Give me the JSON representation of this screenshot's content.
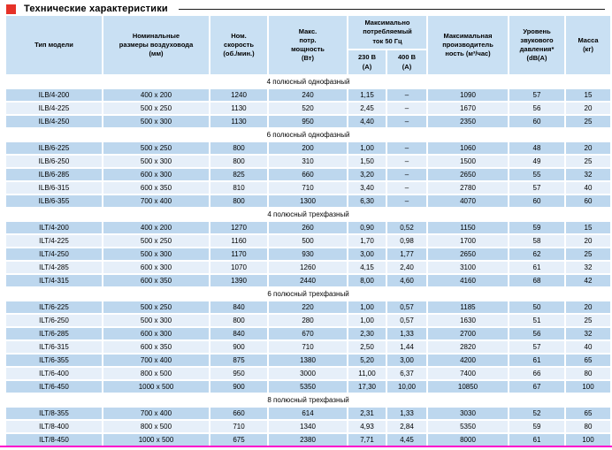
{
  "page": {
    "title": "Технические характеристики",
    "accent_red": "#e63228",
    "bottom_line_color": "#ff00cc",
    "row_color_dark": "#bdd7ee",
    "row_color_light": "#e6eff9",
    "header_color": "#c9e0f3"
  },
  "table": {
    "columns": {
      "model": "Тип модели",
      "size": "Номинальные\nразмеры воздуховода\n(мм)",
      "speed": "Ном.\nскорость\n(об./мин.)",
      "power": "Макс.\nпотр.\nмощность\n(Вт)",
      "current_group": "Максимально\nпотребляемый\nток 50 Гц",
      "current_230": "230 В\n(А)",
      "current_400": "400 В\n(А)",
      "airflow": "Максимальная\nпроизводитель\nность (м³/час)",
      "sound": "Уровень\nзвукового\nдавления*\n(dB(A)",
      "mass": "Масса\n(кг)"
    },
    "sections": [
      {
        "title": "4 полюсный однофазный",
        "rows": [
          [
            "ILB/4-200",
            "400 x 200",
            "1240",
            "240",
            "1,15",
            "–",
            "1090",
            "57",
            "15"
          ],
          [
            "ILB/4-225",
            "500 x 250",
            "1130",
            "520",
            "2,45",
            "–",
            "1670",
            "56",
            "20"
          ],
          [
            "ILB/4-250",
            "500 x 300",
            "1130",
            "950",
            "4,40",
            "–",
            "2350",
            "60",
            "25"
          ]
        ]
      },
      {
        "title": "6 полюсный однофазный",
        "rows": [
          [
            "ILB/6-225",
            "500 x 250",
            "800",
            "200",
            "1,00",
            "–",
            "1060",
            "48",
            "20"
          ],
          [
            "ILB/6-250",
            "500 x 300",
            "800",
            "310",
            "1,50",
            "–",
            "1500",
            "49",
            "25"
          ],
          [
            "ILB/6-285",
            "600 x 300",
            "825",
            "660",
            "3,20",
            "–",
            "2650",
            "55",
            "32"
          ],
          [
            "ILB/6-315",
            "600 x 350",
            "810",
            "710",
            "3,40",
            "–",
            "2780",
            "57",
            "40"
          ],
          [
            "ILB/6-355",
            "700 x 400",
            "800",
            "1300",
            "6,30",
            "–",
            "4070",
            "60",
            "60"
          ]
        ]
      },
      {
        "title": "4 полюсный трехфазный",
        "rows": [
          [
            "ILT/4-200",
            "400 x 200",
            "1270",
            "260",
            "0,90",
            "0,52",
            "1150",
            "59",
            "15"
          ],
          [
            "ILT/4-225",
            "500 x 250",
            "1160",
            "500",
            "1,70",
            "0,98",
            "1700",
            "58",
            "20"
          ],
          [
            "ILT/4-250",
            "500 x 300",
            "1170",
            "930",
            "3,00",
            "1,77",
            "2650",
            "62",
            "25"
          ],
          [
            "ILT/4-285",
            "600 x 300",
            "1070",
            "1260",
            "4,15",
            "2,40",
            "3100",
            "61",
            "32"
          ],
          [
            "ILT/4-315",
            "600 x 350",
            "1390",
            "2440",
            "8,00",
            "4,60",
            "4160",
            "68",
            "42"
          ]
        ]
      },
      {
        "title": "6 полюсный трехфазный",
        "rows": [
          [
            "ILT/6-225",
            "500 x 250",
            "840",
            "220",
            "1,00",
            "0,57",
            "1185",
            "50",
            "20"
          ],
          [
            "ILT/6-250",
            "500 x 300",
            "800",
            "280",
            "1,00",
            "0,57",
            "1630",
            "51",
            "25"
          ],
          [
            "ILT/6-285",
            "600 x 300",
            "840",
            "670",
            "2,30",
            "1,33",
            "2700",
            "56",
            "32"
          ],
          [
            "ILT/6-315",
            "600 x 350",
            "900",
            "710",
            "2,50",
            "1,44",
            "2820",
            "57",
            "40"
          ],
          [
            "ILT/6-355",
            "700 x 400",
            "875",
            "1380",
            "5,20",
            "3,00",
            "4200",
            "61",
            "65"
          ],
          [
            "ILT/6-400",
            "800 x 500",
            "950",
            "3000",
            "11,00",
            "6,37",
            "7400",
            "66",
            "80"
          ],
          [
            "ILT/6-450",
            "1000 x 500",
            "900",
            "5350",
            "17,30",
            "10,00",
            "10850",
            "67",
            "100"
          ]
        ]
      },
      {
        "title": "8 полюсный трехфазный",
        "rows": [
          [
            "ILT/8-355",
            "700 x 400",
            "660",
            "614",
            "2,31",
            "1,33",
            "3030",
            "52",
            "65"
          ],
          [
            "ILT/8-400",
            "800 x 500",
            "710",
            "1340",
            "4,93",
            "2,84",
            "5350",
            "59",
            "80"
          ],
          [
            "ILT/8-450",
            "1000 x 500",
            "675",
            "2380",
            "7,71",
            "4,45",
            "8000",
            "61",
            "100"
          ]
        ]
      }
    ]
  }
}
